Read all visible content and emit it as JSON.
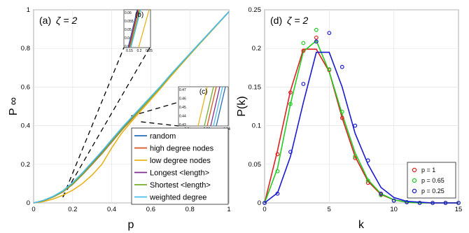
{
  "chart_data": [
    {
      "type": "line",
      "panel_label": "(a)",
      "zeta_label": "ζ = 2",
      "xlabel": "p",
      "ylabel": "P ∞",
      "xlim": [
        0,
        1
      ],
      "ylim": [
        0,
        1
      ],
      "xticks": [
        "0",
        "0.2",
        "0.4",
        "0.6",
        "0.8",
        "1"
      ],
      "yticks": [
        "0",
        "0.2",
        "0.4",
        "0.6",
        "0.8",
        "1"
      ],
      "grid": true,
      "legend_position": "bottom-right",
      "series": [
        {
          "name": "random",
          "color": "#2a6bb5",
          "x": [
            0,
            0.05,
            0.1,
            0.15,
            0.2,
            0.25,
            0.3,
            0.35,
            0.4,
            0.45,
            0.5,
            0.55,
            0.6,
            0.65,
            0.7,
            0.75,
            0.8,
            0.85,
            0.9,
            0.95,
            1
          ],
          "y": [
            0,
            0.012,
            0.032,
            0.06,
            0.1,
            0.15,
            0.205,
            0.26,
            0.32,
            0.38,
            0.435,
            0.49,
            0.545,
            0.6,
            0.66,
            0.715,
            0.77,
            0.825,
            0.88,
            0.935,
            0.99
          ]
        },
        {
          "name": "high degree nodes",
          "color": "#d9541c",
          "x": [
            0,
            0.05,
            0.1,
            0.15,
            0.2,
            0.25,
            0.3,
            0.35,
            0.4,
            0.45,
            0.5,
            0.55,
            0.6,
            0.65,
            0.7,
            0.75,
            0.8,
            0.85,
            0.9,
            0.95,
            1
          ],
          "y": [
            0,
            0.011,
            0.03,
            0.057,
            0.096,
            0.146,
            0.2,
            0.255,
            0.315,
            0.375,
            0.43,
            0.487,
            0.543,
            0.598,
            0.658,
            0.714,
            0.77,
            0.825,
            0.88,
            0.935,
            0.99
          ]
        },
        {
          "name": "low degree nodes",
          "color": "#e8b21a",
          "x": [
            0,
            0.05,
            0.1,
            0.15,
            0.2,
            0.25,
            0.3,
            0.35,
            0.4,
            0.45,
            0.5,
            0.55,
            0.6,
            0.65,
            0.7,
            0.75,
            0.8,
            0.85,
            0.9,
            0.95,
            1
          ],
          "y": [
            0,
            0.007,
            0.02,
            0.04,
            0.066,
            0.1,
            0.145,
            0.2,
            0.285,
            0.36,
            0.42,
            0.478,
            0.535,
            0.592,
            0.652,
            0.71,
            0.767,
            0.823,
            0.878,
            0.934,
            0.99
          ]
        },
        {
          "name": "Longest <length>",
          "color": "#7e2f8e",
          "x": [
            0,
            0.05,
            0.1,
            0.15,
            0.2,
            0.25,
            0.3,
            0.35,
            0.4,
            0.45,
            0.5,
            0.55,
            0.6,
            0.65,
            0.7,
            0.75,
            0.8,
            0.85,
            0.9,
            0.95,
            1
          ],
          "y": [
            0,
            0.012,
            0.033,
            0.062,
            0.103,
            0.154,
            0.21,
            0.265,
            0.325,
            0.384,
            0.44,
            0.494,
            0.549,
            0.603,
            0.662,
            0.717,
            0.772,
            0.826,
            0.881,
            0.936,
            0.99
          ]
        },
        {
          "name": "Shortest <length>",
          "color": "#78ab30",
          "x": [
            0,
            0.05,
            0.1,
            0.15,
            0.2,
            0.25,
            0.3,
            0.35,
            0.4,
            0.45,
            0.5,
            0.55,
            0.6,
            0.65,
            0.7,
            0.75,
            0.8,
            0.85,
            0.9,
            0.95,
            1
          ],
          "y": [
            0,
            0.011,
            0.031,
            0.058,
            0.098,
            0.148,
            0.203,
            0.258,
            0.318,
            0.378,
            0.433,
            0.488,
            0.544,
            0.599,
            0.659,
            0.715,
            0.77,
            0.825,
            0.88,
            0.935,
            0.99
          ]
        },
        {
          "name": "weighted degree",
          "color": "#4dbeee",
          "x": [
            0,
            0.05,
            0.1,
            0.15,
            0.2,
            0.25,
            0.3,
            0.35,
            0.4,
            0.45,
            0.5,
            0.55,
            0.6,
            0.65,
            0.7,
            0.75,
            0.8,
            0.85,
            0.9,
            0.95,
            1
          ],
          "y": [
            0,
            0.013,
            0.034,
            0.063,
            0.105,
            0.156,
            0.212,
            0.268,
            0.328,
            0.387,
            0.442,
            0.496,
            0.55,
            0.604,
            0.663,
            0.718,
            0.773,
            0.827,
            0.881,
            0.936,
            0.99
          ]
        }
      ],
      "insets": [
        {
          "label": "(b)",
          "xticks": [
            "0.15",
            "0.2",
            "0.25"
          ],
          "yticks": [
            "0.06",
            "0.055",
            "0.05",
            "0.045",
            "0.04"
          ]
        },
        {
          "label": "(c)",
          "xticks": [
            "0.5",
            "0.52",
            "0.54"
          ],
          "yticks": [
            "0.47",
            "0.46",
            "0.45",
            "0.44",
            "0.43"
          ]
        }
      ]
    },
    {
      "type": "line",
      "panel_label": "(d)",
      "zeta_label": "ζ = 2",
      "xlabel": "k",
      "ylabel": "P(k)",
      "xlim": [
        0,
        15
      ],
      "ylim": [
        0,
        0.25
      ],
      "xticks": [
        "0",
        "5",
        "10",
        "15"
      ],
      "yticks": [
        "0",
        "0.05",
        "0.1",
        "0.15",
        "0.2",
        "0.25"
      ],
      "grid": true,
      "legend_position": "bottom-right",
      "series": [
        {
          "name": "p = 1",
          "color": "#e02020",
          "line_x": [
            0,
            1,
            2,
            3,
            4,
            5,
            6,
            7,
            8,
            9,
            10,
            11,
            12,
            13,
            14,
            15
          ],
          "line_y": [
            0,
            0.068,
            0.145,
            0.199,
            0.199,
            0.17,
            0.11,
            0.06,
            0.028,
            0.011,
            0.004,
            0.001,
            0,
            0,
            0,
            0
          ],
          "points_x": [
            0,
            1,
            2,
            3,
            4,
            5,
            6,
            7,
            8,
            9,
            10,
            11,
            12,
            13,
            14,
            15
          ],
          "points_y": [
            0,
            0.063,
            0.143,
            0.197,
            0.214,
            0.172,
            0.11,
            0.058,
            0.026,
            0.011,
            0.003,
            0.001,
            0,
            0,
            0,
            0
          ]
        },
        {
          "name": "p = 0.65",
          "color": "#22cc22",
          "line_x": [
            0,
            1,
            2,
            3,
            4,
            5,
            6,
            7,
            8,
            9,
            10,
            11,
            12,
            13,
            14,
            15
          ],
          "line_y": [
            0,
            0.045,
            0.128,
            0.196,
            0.21,
            0.17,
            0.115,
            0.065,
            0.03,
            0.012,
            0.004,
            0.001,
            0,
            0,
            0,
            0
          ],
          "points_x": [
            0,
            1,
            2,
            3,
            4,
            5,
            6,
            7,
            8,
            9,
            10,
            11,
            12,
            13,
            14,
            15
          ],
          "points_y": [
            0,
            0.041,
            0.128,
            0.207,
            0.224,
            0.173,
            0.118,
            0.06,
            0.029,
            0.01,
            0.003,
            0.001,
            0,
            0,
            0,
            0
          ]
        },
        {
          "name": "p = 0.25",
          "color": "#1a1ad0",
          "line_x": [
            0,
            1,
            2,
            3,
            4,
            5,
            6,
            7,
            8,
            9,
            10,
            11,
            12,
            13,
            14,
            15
          ],
          "line_y": [
            0,
            0.013,
            0.06,
            0.13,
            0.195,
            0.195,
            0.15,
            0.09,
            0.05,
            0.02,
            0.007,
            0.002,
            0.001,
            0,
            0,
            0
          ],
          "points_x": [
            0,
            1,
            2,
            3,
            4,
            5,
            6,
            7,
            8,
            9,
            10,
            11,
            12,
            13,
            14,
            15
          ],
          "points_y": [
            0,
            0.012,
            0.066,
            0.154,
            0.209,
            0.22,
            0.176,
            0.1,
            0.055,
            0.012,
            0.003,
            0.001,
            0,
            0,
            0,
            0
          ]
        }
      ]
    }
  ]
}
